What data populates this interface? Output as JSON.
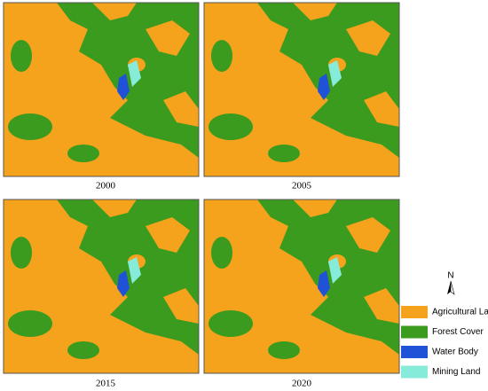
{
  "panels": [
    {
      "label": "2000"
    },
    {
      "label": "2005"
    },
    {
      "label": "2015"
    },
    {
      "label": "2020"
    }
  ],
  "north_arrow": "N",
  "legend": [
    {
      "name": "Agricultural Land",
      "color": "#f5a21c"
    },
    {
      "name": "Forest Cover",
      "color": "#3b9b1e"
    },
    {
      "name": "Water Body",
      "color": "#1f52d6"
    },
    {
      "name": "Mining Land",
      "color": "#86ecd9"
    }
  ]
}
